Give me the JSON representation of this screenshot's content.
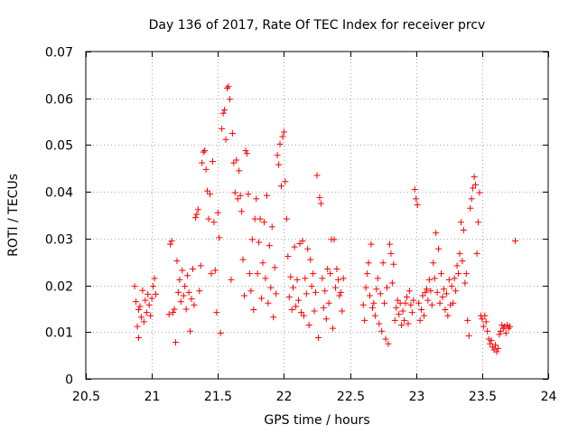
{
  "chart_data": {
    "type": "scatter",
    "title": "Day 136 of 2017, Rate Of TEC Index for receiver prcv",
    "xlabel": "GPS time / hours",
    "ylabel": "ROTI / TECUs",
    "xlim": [
      20.5,
      24
    ],
    "ylim": [
      0,
      0.07
    ],
    "xticks": [
      "20.5",
      "21",
      "21.5",
      "22",
      "22.5",
      "23",
      "23.5",
      "24"
    ],
    "yticks": [
      "0",
      "0.01",
      "0.02",
      "0.03",
      "0.04",
      "0.05",
      "0.06",
      "0.07"
    ],
    "grid": true,
    "marker": "plus",
    "color": "#ff0000",
    "series": [
      {
        "name": "ROTI",
        "points": [
          [
            20.87,
            0.0198
          ],
          [
            20.88,
            0.0165
          ],
          [
            20.89,
            0.0112
          ],
          [
            20.9,
            0.0148
          ],
          [
            20.9,
            0.0088
          ],
          [
            20.91,
            0.0155
          ],
          [
            20.92,
            0.0132
          ],
          [
            20.93,
            0.0189
          ],
          [
            20.94,
            0.0122
          ],
          [
            20.95,
            0.0168
          ],
          [
            20.96,
            0.0142
          ],
          [
            20.97,
            0.0181
          ],
          [
            20.98,
            0.0158
          ],
          [
            20.99,
            0.0135
          ],
          [
            21.0,
            0.0172
          ],
          [
            21.01,
            0.0198
          ],
          [
            21.02,
            0.0215
          ],
          [
            21.03,
            0.0181
          ],
          [
            21.13,
            0.0138
          ],
          [
            21.14,
            0.0288
          ],
          [
            21.15,
            0.0295
          ],
          [
            21.16,
            0.0142
          ],
          [
            21.17,
            0.0149
          ],
          [
            21.18,
            0.0078
          ],
          [
            21.19,
            0.0252
          ],
          [
            21.2,
            0.0185
          ],
          [
            21.21,
            0.0212
          ],
          [
            21.22,
            0.0165
          ],
          [
            21.23,
            0.0232
          ],
          [
            21.24,
            0.0178
          ],
          [
            21.25,
            0.0198
          ],
          [
            21.26,
            0.0149
          ],
          [
            21.27,
            0.0221
          ],
          [
            21.28,
            0.0185
          ],
          [
            21.29,
            0.0102
          ],
          [
            21.3,
            0.0171
          ],
          [
            21.31,
            0.0235
          ],
          [
            21.32,
            0.0158
          ],
          [
            21.33,
            0.0345
          ],
          [
            21.34,
            0.0352
          ],
          [
            21.35,
            0.0362
          ],
          [
            21.36,
            0.0188
          ],
          [
            21.37,
            0.0242
          ],
          [
            21.38,
            0.0462
          ],
          [
            21.39,
            0.0485
          ],
          [
            21.4,
            0.0488
          ],
          [
            21.41,
            0.0448
          ],
          [
            21.42,
            0.0402
          ],
          [
            21.43,
            0.0342
          ],
          [
            21.44,
            0.0395
          ],
          [
            21.45,
            0.0225
          ],
          [
            21.46,
            0.0465
          ],
          [
            21.47,
            0.0335
          ],
          [
            21.48,
            0.0232
          ],
          [
            21.49,
            0.0142
          ],
          [
            21.5,
            0.0355
          ],
          [
            21.51,
            0.0302
          ],
          [
            21.52,
            0.0098
          ],
          [
            21.53,
            0.0535
          ],
          [
            21.54,
            0.0568
          ],
          [
            21.55,
            0.0575
          ],
          [
            21.56,
            0.0512
          ],
          [
            21.57,
            0.0622
          ],
          [
            21.58,
            0.0625
          ],
          [
            21.59,
            0.0598
          ],
          [
            21.6,
            0.0212
          ],
          [
            21.61,
            0.0525
          ],
          [
            21.62,
            0.0462
          ],
          [
            21.63,
            0.0398
          ],
          [
            21.64,
            0.0468
          ],
          [
            21.65,
            0.0385
          ],
          [
            21.66,
            0.0445
          ],
          [
            21.67,
            0.0392
          ],
          [
            21.68,
            0.0358
          ],
          [
            21.69,
            0.0255
          ],
          [
            21.7,
            0.0178
          ],
          [
            21.71,
            0.0488
          ],
          [
            21.72,
            0.0482
          ],
          [
            21.73,
            0.0395
          ],
          [
            21.74,
            0.0225
          ],
          [
            21.75,
            0.0188
          ],
          [
            21.76,
            0.0298
          ],
          [
            21.77,
            0.0148
          ],
          [
            21.78,
            0.0342
          ],
          [
            21.79,
            0.0385
          ],
          [
            21.8,
            0.0225
          ],
          [
            21.81,
            0.0292
          ],
          [
            21.82,
            0.0342
          ],
          [
            21.83,
            0.0172
          ],
          [
            21.84,
            0.0248
          ],
          [
            21.85,
            0.0335
          ],
          [
            21.86,
            0.0215
          ],
          [
            21.87,
            0.0392
          ],
          [
            21.88,
            0.0162
          ],
          [
            21.89,
            0.0285
          ],
          [
            21.9,
            0.0195
          ],
          [
            21.91,
            0.0325
          ],
          [
            21.92,
            0.0132
          ],
          [
            21.93,
            0.0238
          ],
          [
            21.94,
            0.0182
          ],
          [
            21.95,
            0.0478
          ],
          [
            21.96,
            0.0458
          ],
          [
            21.97,
            0.0502
          ],
          [
            21.98,
            0.0412
          ],
          [
            21.99,
            0.0518
          ],
          [
            22.0,
            0.0528
          ],
          [
            22.01,
            0.0422
          ],
          [
            22.02,
            0.0342
          ],
          [
            22.03,
            0.0262
          ],
          [
            22.04,
            0.0175
          ],
          [
            22.05,
            0.0218
          ],
          [
            22.06,
            0.0148
          ],
          [
            22.07,
            0.0195
          ],
          [
            22.08,
            0.0282
          ],
          [
            22.09,
            0.0155
          ],
          [
            22.1,
            0.0212
          ],
          [
            22.11,
            0.0168
          ],
          [
            22.12,
            0.0289
          ],
          [
            22.13,
            0.0142
          ],
          [
            22.14,
            0.0295
          ],
          [
            22.15,
            0.0135
          ],
          [
            22.16,
            0.0215
          ],
          [
            22.17,
            0.0182
          ],
          [
            22.18,
            0.0278
          ],
          [
            22.19,
            0.0115
          ],
          [
            22.2,
            0.0255
          ],
          [
            22.21,
            0.0198
          ],
          [
            22.22,
            0.0225
          ],
          [
            22.23,
            0.0145
          ],
          [
            22.24,
            0.0185
          ],
          [
            22.25,
            0.0435
          ],
          [
            22.26,
            0.0088
          ],
          [
            22.27,
            0.0388
          ],
          [
            22.28,
            0.0375
          ],
          [
            22.29,
            0.0215
          ],
          [
            22.3,
            0.0152
          ],
          [
            22.31,
            0.0188
          ],
          [
            22.32,
            0.0128
          ],
          [
            22.33,
            0.0235
          ],
          [
            22.34,
            0.0162
          ],
          [
            22.35,
            0.0225
          ],
          [
            22.36,
            0.0298
          ],
          [
            22.37,
            0.0108
          ],
          [
            22.38,
            0.0298
          ],
          [
            22.39,
            0.0195
          ],
          [
            22.4,
            0.0235
          ],
          [
            22.41,
            0.0212
          ],
          [
            22.42,
            0.0178
          ],
          [
            22.43,
            0.0185
          ],
          [
            22.44,
            0.0145
          ],
          [
            22.45,
            0.0215
          ],
          [
            22.6,
            0.0158
          ],
          [
            22.61,
            0.0125
          ],
          [
            22.62,
            0.0195
          ],
          [
            22.63,
            0.0225
          ],
          [
            22.64,
            0.0248
          ],
          [
            22.65,
            0.0178
          ],
          [
            22.66,
            0.0288
          ],
          [
            22.67,
            0.0152
          ],
          [
            22.68,
            0.0162
          ],
          [
            22.69,
            0.0135
          ],
          [
            22.7,
            0.0192
          ],
          [
            22.71,
            0.0215
          ],
          [
            22.72,
            0.0118
          ],
          [
            22.73,
            0.0182
          ],
          [
            22.74,
            0.0102
          ],
          [
            22.75,
            0.0248
          ],
          [
            22.76,
            0.0162
          ],
          [
            22.77,
            0.0085
          ],
          [
            22.78,
            0.0195
          ],
          [
            22.79,
            0.0075
          ],
          [
            22.8,
            0.0288
          ],
          [
            22.81,
            0.0268
          ],
          [
            22.82,
            0.0205
          ],
          [
            22.83,
            0.0245
          ],
          [
            22.84,
            0.0125
          ],
          [
            22.85,
            0.0152
          ],
          [
            22.86,
            0.0168
          ],
          [
            22.87,
            0.0138
          ],
          [
            22.88,
            0.0162
          ],
          [
            22.89,
            0.0115
          ],
          [
            22.9,
            0.0145
          ],
          [
            22.91,
            0.0125
          ],
          [
            22.92,
            0.0162
          ],
          [
            22.93,
            0.0175
          ],
          [
            22.94,
            0.0118
          ],
          [
            22.95,
            0.0188
          ],
          [
            22.96,
            0.0158
          ],
          [
            22.97,
            0.0142
          ],
          [
            22.98,
            0.0168
          ],
          [
            22.99,
            0.0405
          ],
          [
            23.0,
            0.0385
          ],
          [
            23.01,
            0.0372
          ],
          [
            23.02,
            0.0162
          ],
          [
            23.03,
            0.0125
          ],
          [
            23.04,
            0.0148
          ],
          [
            23.05,
            0.0178
          ],
          [
            23.06,
            0.0135
          ],
          [
            23.07,
            0.0185
          ],
          [
            23.08,
            0.0192
          ],
          [
            23.09,
            0.0168
          ],
          [
            23.1,
            0.0212
          ],
          [
            23.11,
            0.0188
          ],
          [
            23.12,
            0.0158
          ],
          [
            23.13,
            0.0248
          ],
          [
            23.14,
            0.0215
          ],
          [
            23.15,
            0.0312
          ],
          [
            23.16,
            0.0185
          ],
          [
            23.17,
            0.0278
          ],
          [
            23.18,
            0.0162
          ],
          [
            23.19,
            0.0225
          ],
          [
            23.2,
            0.0175
          ],
          [
            23.21,
            0.0192
          ],
          [
            23.22,
            0.0148
          ],
          [
            23.23,
            0.0182
          ],
          [
            23.24,
            0.0135
          ],
          [
            23.25,
            0.0212
          ],
          [
            23.26,
            0.0158
          ],
          [
            23.27,
            0.0198
          ],
          [
            23.28,
            0.0162
          ],
          [
            23.29,
            0.0215
          ],
          [
            23.3,
            0.0188
          ],
          [
            23.31,
            0.0242
          ],
          [
            23.32,
            0.0225
          ],
          [
            23.33,
            0.0268
          ],
          [
            23.34,
            0.0335
          ],
          [
            23.35,
            0.0252
          ],
          [
            23.36,
            0.0318
          ],
          [
            23.37,
            0.0205
          ],
          [
            23.38,
            0.0225
          ],
          [
            23.39,
            0.0125
          ],
          [
            23.4,
            0.0092
          ],
          [
            23.41,
            0.0365
          ],
          [
            23.42,
            0.0385
          ],
          [
            23.43,
            0.0408
          ],
          [
            23.44,
            0.0432
          ],
          [
            23.45,
            0.0415
          ],
          [
            23.46,
            0.0268
          ],
          [
            23.47,
            0.0335
          ],
          [
            23.48,
            0.0398
          ],
          [
            23.49,
            0.0135
          ],
          [
            23.5,
            0.0128
          ],
          [
            23.51,
            0.0112
          ],
          [
            23.52,
            0.0135
          ],
          [
            23.53,
            0.0122
          ],
          [
            23.54,
            0.0102
          ],
          [
            23.55,
            0.0085
          ],
          [
            23.56,
            0.0075
          ],
          [
            23.57,
            0.0082
          ],
          [
            23.58,
            0.0068
          ],
          [
            23.59,
            0.0062
          ],
          [
            23.6,
            0.0072
          ],
          [
            23.61,
            0.0058
          ],
          [
            23.62,
            0.0065
          ],
          [
            23.63,
            0.0095
          ],
          [
            23.64,
            0.0102
          ],
          [
            23.65,
            0.0115
          ],
          [
            23.66,
            0.0108
          ],
          [
            23.67,
            0.0112
          ],
          [
            23.68,
            0.0098
          ],
          [
            23.69,
            0.0115
          ],
          [
            23.7,
            0.0108
          ],
          [
            23.71,
            0.0112
          ],
          [
            23.75,
            0.0295
          ]
        ]
      }
    ]
  }
}
